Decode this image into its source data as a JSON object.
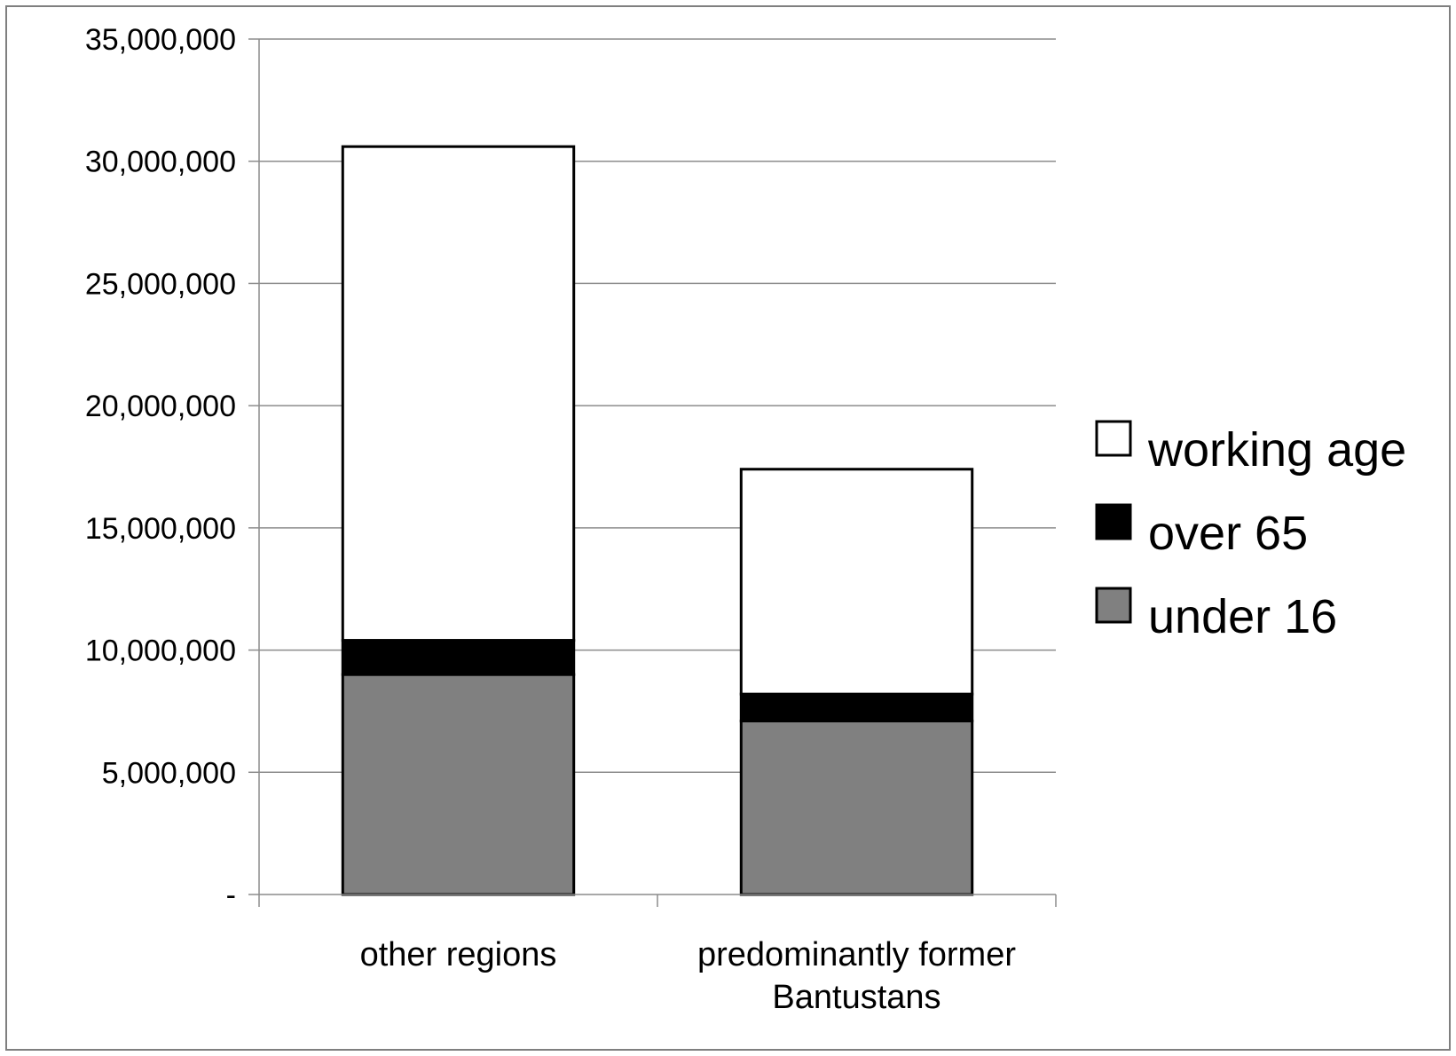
{
  "chart_data": {
    "type": "bar",
    "stacked": true,
    "categories": [
      "other regions",
      "predominantly former\nBantustans"
    ],
    "series": [
      {
        "name": "under 16",
        "values": [
          9000000,
          7100000
        ],
        "color": "#808080"
      },
      {
        "name": "over 65",
        "values": [
          1400000,
          1100000
        ],
        "color": "#000000"
      },
      {
        "name": "working age",
        "values": [
          20200000,
          9200000
        ],
        "color": "#ffffff"
      }
    ],
    "legend_order": [
      "working age",
      "over 65",
      "under 16"
    ],
    "ylim": [
      0,
      35000000
    ],
    "yticks": [
      0,
      5000000,
      10000000,
      15000000,
      20000000,
      25000000,
      30000000,
      35000000
    ],
    "ytick_labels": [
      "-",
      "5,000,000",
      "10,000,000",
      "15,000,000",
      "20,000,000",
      "25,000,000",
      "30,000,000",
      "35,000,000"
    ],
    "grid": true,
    "legend": "right",
    "title": "",
    "xlabel": "",
    "ylabel": ""
  }
}
